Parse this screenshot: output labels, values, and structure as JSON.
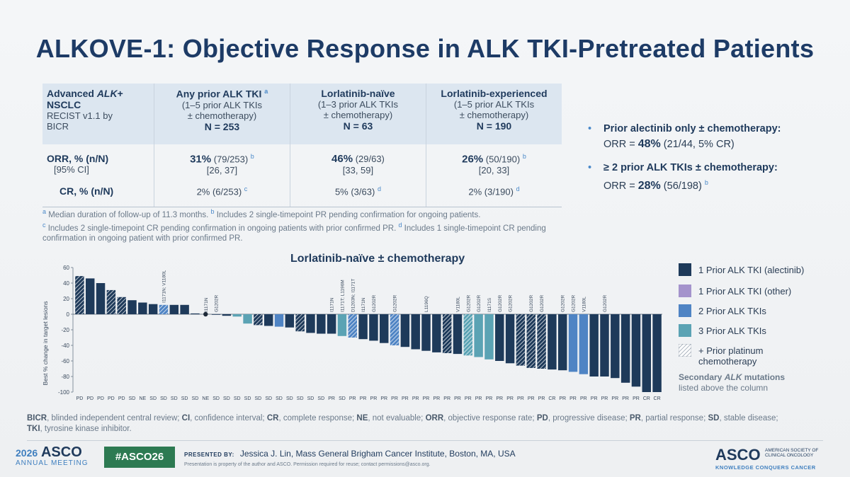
{
  "slide_title": "ALKOVE-1: Objective Response in ALK TKI-Pretreated Patients",
  "table": {
    "header": {
      "col0_line1_a": "Advanced ",
      "col0_line1_b": "ALK",
      "col0_line1_c": "+",
      "col0_line2": "NSCLC",
      "col0_line3": "RECIST v1.1 by",
      "col0_line4": "BICR",
      "cols": [
        {
          "title": "Any prior ALK TKI",
          "sup": "a",
          "sub1": "(1–5 prior ALK TKIs",
          "sub2": "± chemotherapy)",
          "n": "N = 253"
        },
        {
          "title": "Lorlatinib-naïve",
          "sup": "",
          "sub1": "(1–3 prior ALK TKIs",
          "sub2": "± chemotherapy)",
          "n": "N = 63"
        },
        {
          "title": "Lorlatinib-experienced",
          "sup": "",
          "sub1": "(1–5 prior ALK TKIs",
          "sub2": "± chemotherapy)",
          "n": "N = 190"
        }
      ]
    },
    "orr_label": "ORR, % (n/N)",
    "ci_label": "[95% CI]",
    "cr_label": "CR, % (n/N)",
    "orr": [
      {
        "pct": "31%",
        "n": "(79/253)",
        "sup": "b",
        "ci": "[26, 37]"
      },
      {
        "pct": "46%",
        "n": "(29/63)",
        "sup": "",
        "ci": "[33, 59]"
      },
      {
        "pct": "26%",
        "n": "(50/190)",
        "sup": "b",
        "ci": "[20, 33]"
      }
    ],
    "cr": [
      {
        "val": "2% (6/253)",
        "sup": "c"
      },
      {
        "val": "5% (3/63)",
        "sup": "d"
      },
      {
        "val": "2% (3/190)",
        "sup": "d"
      }
    ]
  },
  "footnotes": {
    "a": "a",
    "a_text": " Median duration of follow-up of 11.3 months. ",
    "b": "b",
    "b_text": " Includes 2 single-timepoint PR pending confirmation for ongoing patients.",
    "c": "c",
    "c_text": " Includes 2 single-timepoint CR pending confirmation in ongoing patients with prior confirmed PR. ",
    "d": "d",
    "d_text": " Includes 1 single-timepoint CR pending confirmation in ongoing patient with prior confirmed PR."
  },
  "bullets": [
    {
      "head": "Prior alectinib only ± chemotherapy:",
      "pre": "ORR = ",
      "pct": "48%",
      "post": " (21/44, 5% CR)",
      "sup": ""
    },
    {
      "head": "≥ 2 prior ALK TKIs ± chemotherapy:",
      "pre": "ORR = ",
      "pct": "28%",
      "post": " (56/198)",
      "sup": "b"
    }
  ],
  "bullet_marker": "•",
  "chart_data": {
    "type": "bar",
    "title": "Lorlatinib-naïve ± chemotherapy",
    "ylabel": "Best % change in target lesions",
    "ylim": [
      -100,
      60
    ],
    "yticks": [
      60,
      40,
      20,
      0,
      -20,
      -40,
      -60,
      -80,
      -100
    ],
    "categories": [
      "PD",
      "PD",
      "PD",
      "PD",
      "PD",
      "SD",
      "NE",
      "SD",
      "SD",
      "SD",
      "SD",
      "SD",
      "NE",
      "SD",
      "SD",
      "SD",
      "SD",
      "SD",
      "SD",
      "SD",
      "SD",
      "SD",
      "SD",
      "SD",
      "PR",
      "SD",
      "PR",
      "PR",
      "PR",
      "PR",
      "PR",
      "PR",
      "PR",
      "PR",
      "PR",
      "PR",
      "PR",
      "PR",
      "PR",
      "PR",
      "PR",
      "PR",
      "PR",
      "PR",
      "PR",
      "CR",
      "PR",
      "PR",
      "PR",
      "PR",
      "PR",
      "PR",
      "PR",
      "PR",
      "CR",
      "CR"
    ],
    "values": [
      49,
      46,
      40,
      31,
      22,
      18,
      15,
      13,
      12,
      12,
      12,
      1,
      0,
      0,
      -2,
      -3,
      -12,
      -14,
      -15,
      -16,
      -17,
      -22,
      -24,
      -25,
      -25,
      -28,
      -30,
      -32,
      -34,
      -37,
      -40,
      -42,
      -45,
      -47,
      -49,
      -50,
      -51,
      -53,
      -55,
      -58,
      -60,
      -63,
      -66,
      -69,
      -70,
      -71,
      -72,
      -74,
      -77,
      -80,
      -80,
      -82,
      -88,
      -93,
      -100,
      -100
    ],
    "group": [
      1,
      1,
      1,
      1,
      1,
      1,
      1,
      1,
      2,
      1,
      1,
      1,
      1,
      1,
      1,
      3,
      3,
      1,
      1,
      2,
      1,
      1,
      1,
      1,
      1,
      3,
      2,
      1,
      1,
      1,
      2,
      1,
      1,
      1,
      1,
      1,
      1,
      3,
      3,
      3,
      1,
      1,
      1,
      1,
      1,
      1,
      1,
      2,
      2,
      1,
      1,
      1,
      1,
      1,
      1,
      1
    ],
    "platinum": [
      true,
      false,
      false,
      true,
      true,
      false,
      false,
      false,
      true,
      false,
      false,
      false,
      false,
      false,
      false,
      false,
      false,
      true,
      false,
      false,
      false,
      true,
      false,
      false,
      false,
      false,
      true,
      false,
      false,
      false,
      true,
      false,
      false,
      false,
      false,
      true,
      false,
      true,
      false,
      false,
      false,
      false,
      true,
      true,
      true,
      false,
      false,
      false,
      false,
      false,
      false,
      false,
      false,
      false,
      false,
      false
    ],
    "mutations": [
      {
        "index": 8,
        "label": "I1171N; V1180L"
      },
      {
        "index": 12,
        "label": "I1171N"
      },
      {
        "index": 13,
        "label": "G1202R"
      },
      {
        "index": 24,
        "label": "I1171N"
      },
      {
        "index": 25,
        "label": "I1171T; L1196M"
      },
      {
        "index": 26,
        "label": "D1203N; I1171T"
      },
      {
        "index": 27,
        "label": "I1171N"
      },
      {
        "index": 28,
        "label": "G1202R"
      },
      {
        "index": 30,
        "label": "G1202R"
      },
      {
        "index": 33,
        "label": "L1196Q"
      },
      {
        "index": 36,
        "label": "V1180L"
      },
      {
        "index": 37,
        "label": "G1202R"
      },
      {
        "index": 38,
        "label": "G1202R"
      },
      {
        "index": 39,
        "label": "I1171S"
      },
      {
        "index": 40,
        "label": "G1202R"
      },
      {
        "index": 41,
        "label": "G1202R"
      },
      {
        "index": 43,
        "label": "G1202R"
      },
      {
        "index": 44,
        "label": "G1202R"
      },
      {
        "index": 46,
        "label": "G1202R"
      },
      {
        "index": 47,
        "label": "G1202R"
      },
      {
        "index": 48,
        "label": "V1180L"
      },
      {
        "index": 50,
        "label": "G1202R"
      }
    ],
    "legend": [
      {
        "label": "1 Prior ALK TKI (alectinib)",
        "color": "#1e3a5a"
      },
      {
        "label": "1 Prior ALK TKI (other)",
        "color": "#a493cc"
      },
      {
        "label": "2 Prior ALK TKIs",
        "color": "#4f84c4"
      },
      {
        "label": "3 Prior ALK TKIs",
        "color": "#5ba3b4"
      },
      {
        "label": "+ Prior platinum",
        "label2": "chemotherapy",
        "color": "hatch"
      }
    ],
    "legend_note_a": "Secondary ",
    "legend_note_b": "ALK",
    "legend_note_c": " mutations",
    "legend_note_2": "listed above the column",
    "colors": {
      "g1": "#1e3a5a",
      "g2": "#4f84c4",
      "g3": "#5ba3b4",
      "g4": "#a493cc"
    }
  },
  "abbreviations": [
    {
      "k": "BICR",
      "v": ", blinded independent central review; "
    },
    {
      "k": "CI",
      "v": ", confidence interval; "
    },
    {
      "k": "CR",
      "v": ", complete response; "
    },
    {
      "k": "NE",
      "v": ", not evaluable; "
    },
    {
      "k": "ORR",
      "v": ", objective response rate; "
    },
    {
      "k": "PD",
      "v": ", progressive disease; "
    },
    {
      "k": "PR",
      "v": ", partial response; "
    },
    {
      "k": "SD",
      "v": ", stable disease; "
    },
    {
      "k": "TKI",
      "v": ", tyrosine kinase inhibitor."
    }
  ],
  "footer": {
    "year": "2026",
    "org": "ASCO",
    "sub": "ANNUAL MEETING",
    "hashtag": "#ASCO26",
    "presented_by": "PRESENTED BY:",
    "presenter": "Jessica J. Lin, Mass General Brigham Cancer Institute, Boston, MA, USA",
    "permission": "Presentation is property of the author and ASCO. Permission required for reuse; contact permissions@asco.org.",
    "right_logo": "ASCO",
    "right_soc": "AMERICAN SOCIETY OF CLINICAL ONCOLOGY",
    "right_tag": "KNOWLEDGE CONQUERS CANCER"
  }
}
